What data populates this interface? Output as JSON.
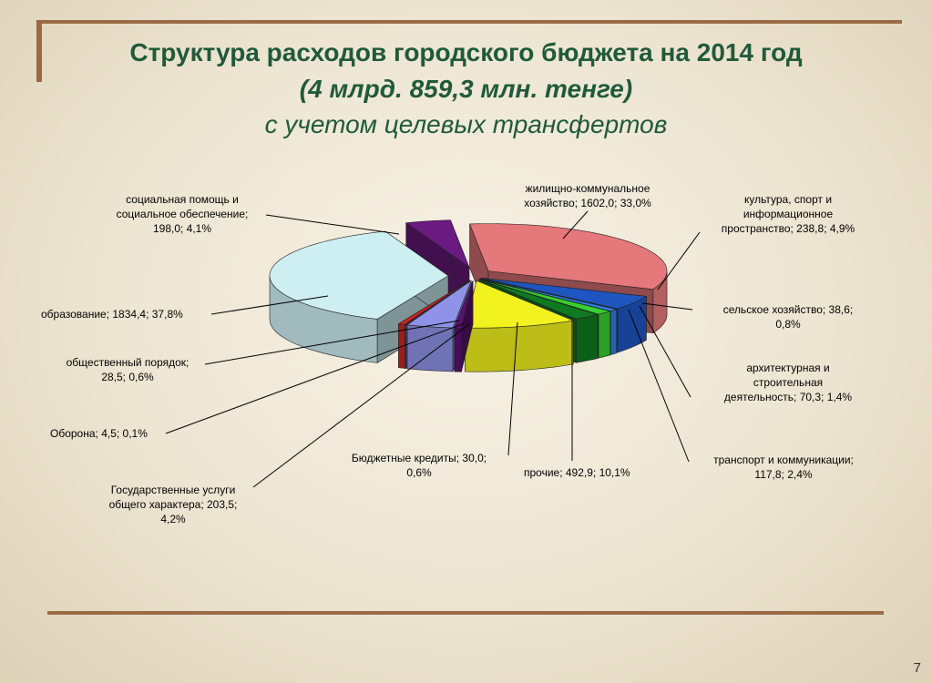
{
  "slide": {
    "title_line1": "Структура расходов городского бюджета на 2014 год",
    "title_line2": "(4 млрд. 859,3 млн. тенге)",
    "title_line3": "с учетом целевых трансфертов",
    "page_number": "7"
  },
  "chart_data": {
    "type": "pie",
    "three_d": true,
    "total_label": "4 млрд. 859,3 млн. тенге",
    "slices": [
      {
        "label": "жилищно-коммунальное хозяйство",
        "value": 1602.0,
        "percent": 33.0,
        "color": "#e5787a",
        "text_lines": [
          "жилищно-коммунальное",
          "хозяйство; 1602,0;  33,0%"
        ]
      },
      {
        "label": "культура, спорт и информационное пространство",
        "value": 238.8,
        "percent": 4.9,
        "color": "#1f55c0",
        "text_lines": [
          "культура,  спорт и",
          "информационное",
          "пространство;  238,8;  4,9%"
        ]
      },
      {
        "label": "сельское хозяйство",
        "value": 38.6,
        "percent": 0.8,
        "color": "#2f7fe0",
        "text_lines": [
          "сельское хозяйство; 38,6;",
          "0,8%"
        ]
      },
      {
        "label": "архитектурная и строительная деятельность",
        "value": 70.3,
        "percent": 1.4,
        "color": "#37cf2f",
        "text_lines": [
          "архитектурная и",
          "строительная",
          "деятельность;  70,3;  1,4%"
        ]
      },
      {
        "label": "транспорт и коммуникации",
        "value": 117.8,
        "percent": 2.4,
        "color": "#0f7a20",
        "text_lines": [
          "транспорт и коммуникации;",
          "117,8;  2,4%"
        ]
      },
      {
        "label": "прочие",
        "value": 492.9,
        "percent": 10.1,
        "color": "#f2f21f",
        "text_lines": [
          "прочие; 492,9;  10,1%"
        ]
      },
      {
        "label": "Бюджетные кредиты",
        "value": 30.0,
        "percent": 0.6,
        "color": "#5a1070",
        "text_lines": [
          "Бюджетные кредиты; 30,0;",
          "0,6%"
        ]
      },
      {
        "label": "Государственные услуги общего характера",
        "value": 203.5,
        "percent": 4.2,
        "color": "#8e93e8",
        "text_lines": [
          "Государственные  услуги",
          "общего  характера; 203,5;",
          "4,2%"
        ]
      },
      {
        "label": "Оборона",
        "value": 4.5,
        "percent": 0.1,
        "color": "#6b6bb0",
        "text_lines": [
          "Оборона; 4,5; 0,1%"
        ]
      },
      {
        "label": "общественный порядок",
        "value": 28.5,
        "percent": 0.6,
        "color": "#d42020",
        "text_lines": [
          "общественный  порядок;",
          "28,5;  0,6%"
        ]
      },
      {
        "label": "образование",
        "value": 1834.4,
        "percent": 37.8,
        "color": "#cdeff2",
        "text_lines": [
          "образование; 1834,4;  37,8%"
        ]
      },
      {
        "label": "социальная помощь и социальное обеспечение",
        "value": 198.0,
        "percent": 4.1,
        "color": "#6a1a80",
        "text_lines": [
          "социальная помощь  и",
          "социальное  обеспечение;",
          "198,0;  4,1%"
        ]
      }
    ]
  }
}
